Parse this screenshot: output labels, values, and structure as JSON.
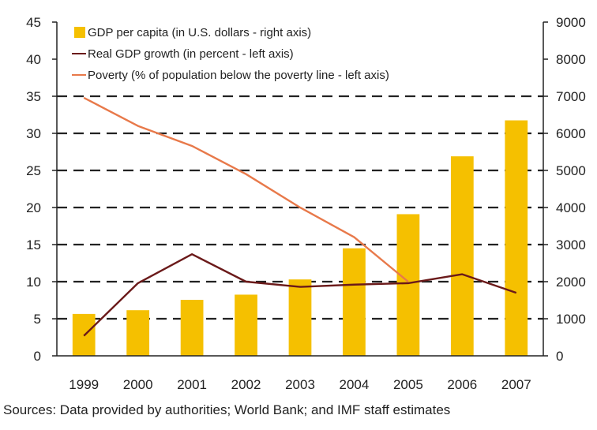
{
  "chart_data": {
    "type": "bar",
    "categories": [
      "1999",
      "2000",
      "2001",
      "2002",
      "2003",
      "2004",
      "2005",
      "2006",
      "2007"
    ],
    "series": [
      {
        "name": "GDP per capita (in U.S. dollars - right axis)",
        "kind": "bar",
        "axis": "right",
        "values": [
          1130,
          1230,
          1510,
          1650,
          2060,
          2900,
          3820,
          5380,
          6350
        ],
        "color": "#F5C000"
      },
      {
        "name": "Real GDP growth (in percent - left axis)",
        "kind": "line",
        "axis": "left",
        "values": [
          2.7,
          9.8,
          13.7,
          10.0,
          9.3,
          9.6,
          9.8,
          11.0,
          8.5
        ],
        "color": "#6B1A1A"
      },
      {
        "name": "Poverty (% of population below the poverty line - left axis)",
        "kind": "line",
        "axis": "left",
        "values": [
          34.8,
          31.0,
          28.3,
          24.5,
          20.0,
          16.0,
          10.0,
          null,
          null
        ],
        "color": "#E8794A"
      }
    ],
    "left_axis": {
      "ylim": [
        0,
        45
      ],
      "ticks": [
        "0",
        "5",
        "10",
        "15",
        "20",
        "25",
        "30",
        "35",
        "40",
        "45"
      ]
    },
    "right_axis": {
      "ylim": [
        0,
        9000
      ],
      "ticks": [
        "0",
        "1000",
        "2000",
        "3000",
        "4000",
        "5000",
        "6000",
        "7000",
        "8000",
        "9000"
      ]
    },
    "grid": "dashed horizontal",
    "legend_position": "top-left"
  },
  "source_note": "Sources: Data provided by authorities; World Bank; and IMF staff estimates"
}
